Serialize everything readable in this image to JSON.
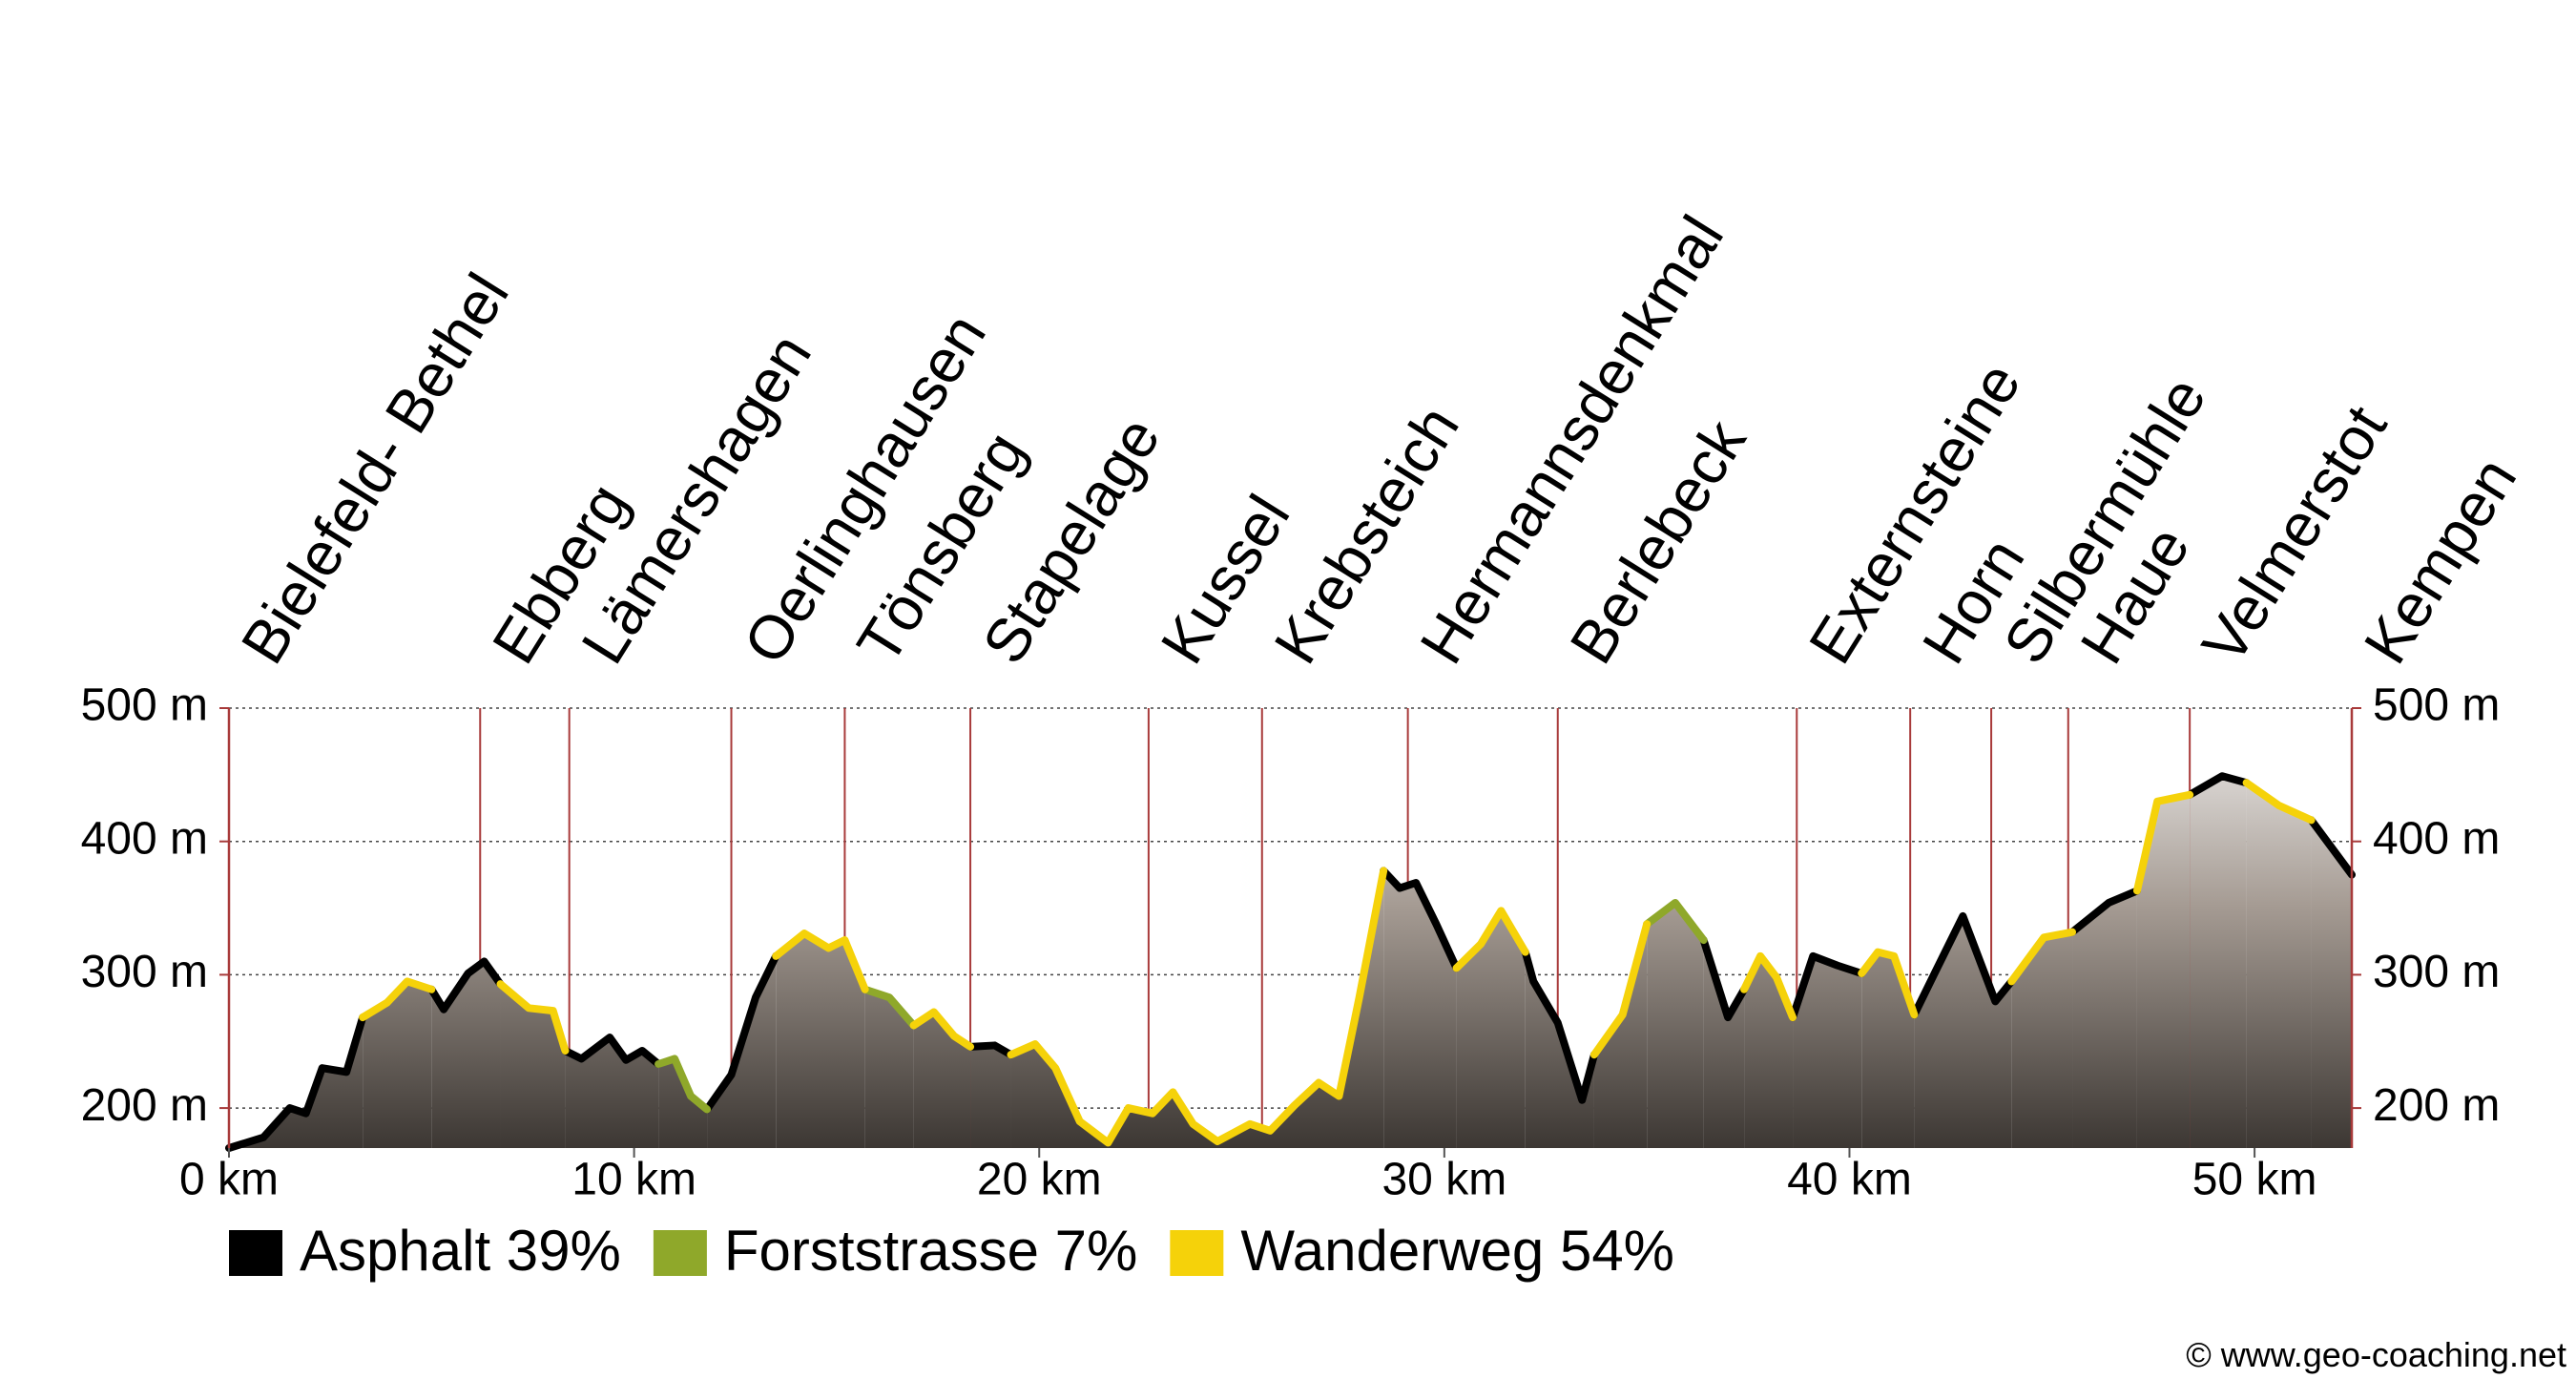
{
  "chart_data": {
    "type": "area",
    "x": [
      0,
      0.85,
      1.5,
      1.9,
      2.3,
      2.9,
      3.3,
      3.9,
      4.4,
      5.0,
      5.3,
      5.9,
      6.3,
      6.7,
      7.4,
      8.0,
      8.3,
      8.7,
      9.4,
      9.8,
      10.2,
      10.6,
      11.0,
      11.4,
      11.8,
      12.4,
      13.0,
      13.5,
      14.2,
      14.8,
      15.2,
      15.7,
      16.3,
      16.9,
      17.4,
      17.9,
      18.3,
      18.9,
      19.3,
      19.9,
      20.4,
      21.0,
      21.7,
      22.2,
      22.8,
      23.3,
      23.8,
      24.4,
      25.2,
      25.7,
      26.3,
      26.9,
      27.4,
      27.9,
      28.5,
      28.9,
      29.3,
      29.8,
      30.3,
      30.9,
      31.4,
      32.0,
      32.2,
      32.8,
      33.4,
      33.7,
      34.4,
      35.0,
      35.7,
      36.4,
      37.0,
      37.4,
      37.8,
      38.2,
      38.6,
      39.1,
      39.7,
      40.3,
      40.7,
      41.1,
      41.6,
      42.1,
      42.8,
      43.6,
      44.0,
      44.8,
      45.5,
      46.4,
      47.1,
      47.6,
      48.4,
      49.2,
      49.8,
      50.6,
      51.4,
      52.4
    ],
    "series": [
      {
        "name": "Asphalt 39%",
        "color": "#000000",
        "values": [
          170,
          178,
          200,
          196,
          230,
          227,
          268,
          null,
          null,
          289,
          274,
          301,
          310,
          293,
          null,
          null,
          243,
          237,
          253,
          236,
          243,
          233,
          null,
          null,
          199,
          225,
          283,
          314,
          null,
          null,
          null,
          null,
          null,
          null,
          null,
          null,
          246,
          247,
          240,
          null,
          null,
          null,
          null,
          null,
          null,
          null,
          null,
          null,
          null,
          null,
          null,
          null,
          null,
          null,
          378,
          365,
          369,
          338,
          305,
          null,
          null,
          317,
          295,
          264,
          206,
          240,
          null,
          null,
          null,
          326,
          268,
          289,
          null,
          null,
          268,
          314,
          307,
          301,
          null,
          null,
          270,
          301,
          344,
          280,
          295,
          null,
          332,
          354,
          363,
          null,
          435,
          449,
          444,
          null,
          416,
          375
        ]
      },
      {
        "name": "Forststrasse 7%",
        "color": "#8fa82a",
        "values": [
          null,
          null,
          null,
          null,
          null,
          null,
          null,
          null,
          null,
          null,
          null,
          null,
          null,
          null,
          null,
          null,
          null,
          null,
          null,
          null,
          null,
          233,
          237,
          209,
          199,
          null,
          null,
          null,
          null,
          null,
          null,
          289,
          283,
          262,
          null,
          null,
          null,
          null,
          null,
          null,
          null,
          null,
          null,
          null,
          null,
          null,
          null,
          null,
          null,
          null,
          null,
          null,
          null,
          null,
          null,
          null,
          null,
          null,
          null,
          null,
          null,
          null,
          null,
          null,
          null,
          null,
          null,
          338,
          354,
          326,
          null,
          null,
          null,
          null,
          null,
          null,
          null,
          null,
          null,
          null,
          null,
          null,
          null,
          null,
          null,
          null,
          null,
          null,
          null,
          null,
          null,
          null,
          null,
          null,
          null,
          null
        ]
      },
      {
        "name": "Wanderweg 54%",
        "color": "#f5d20a",
        "values": [
          null,
          null,
          null,
          null,
          null,
          null,
          268,
          279,
          295,
          289,
          null,
          null,
          null,
          293,
          275,
          273,
          243,
          null,
          null,
          null,
          null,
          null,
          null,
          null,
          null,
          null,
          null,
          314,
          331,
          320,
          326,
          289,
          null,
          262,
          272,
          254,
          246,
          null,
          240,
          248,
          230,
          190,
          174,
          200,
          196,
          212,
          188,
          175,
          188,
          183,
          202,
          219,
          209,
          283,
          378,
          null,
          null,
          null,
          305,
          323,
          348,
          317,
          null,
          null,
          null,
          240,
          270,
          338,
          null,
          null,
          null,
          289,
          314,
          298,
          268,
          null,
          null,
          301,
          317,
          314,
          270,
          null,
          null,
          null,
          295,
          328,
          332,
          null,
          363,
          430,
          435,
          null,
          444,
          427,
          416,
          null
        ]
      }
    ],
    "xlim": [
      0,
      52.4
    ],
    "xticks": [
      {
        "value": 0,
        "label": "0 km"
      },
      {
        "value": 10,
        "label": "10 km"
      },
      {
        "value": 20,
        "label": "20 km"
      },
      {
        "value": 30,
        "label": "30 km"
      },
      {
        "value": 40,
        "label": "40 km"
      },
      {
        "value": 50,
        "label": "50 km"
      }
    ],
    "ylim": [
      170,
      500
    ],
    "yticks": [
      {
        "value": 200,
        "label": "200 m"
      },
      {
        "value": 300,
        "label": "300 m"
      },
      {
        "value": 400,
        "label": "400 m"
      },
      {
        "value": 500,
        "label": "500 m"
      }
    ],
    "y2lim": [
      170,
      500
    ],
    "y2ticks": [
      {
        "value": 200,
        "label": "200 m"
      },
      {
        "value": 300,
        "label": "300 m"
      },
      {
        "value": 400,
        "label": "400 m"
      },
      {
        "value": 500,
        "label": "500 m"
      }
    ],
    "grid": true,
    "waypoints": [
      {
        "name": "Bielefeld- Bethel",
        "x": 0
      },
      {
        "name": "Ebberg",
        "x": 6.2
      },
      {
        "name": "Lämershagen",
        "x": 8.4
      },
      {
        "name": "Oerlinghausen",
        "x": 12.4
      },
      {
        "name": "Tönsberg",
        "x": 15.2
      },
      {
        "name": "Stapelage",
        "x": 18.3
      },
      {
        "name": "Kussel",
        "x": 22.7
      },
      {
        "name": "Krebsteich",
        "x": 25.5
      },
      {
        "name": "Hermannsdenkmal",
        "x": 29.1
      },
      {
        "name": "Berlebeck",
        "x": 32.8
      },
      {
        "name": "Externsteine",
        "x": 38.7
      },
      {
        "name": "Horn",
        "x": 41.5
      },
      {
        "name": "Silbermühle",
        "x": 43.5
      },
      {
        "name": "Haue",
        "x": 45.4
      },
      {
        "name": "Velmerstot",
        "x": 48.4
      },
      {
        "name": "Kempen",
        "x": 52.4
      }
    ],
    "source": "© www.geo-coaching.net"
  }
}
